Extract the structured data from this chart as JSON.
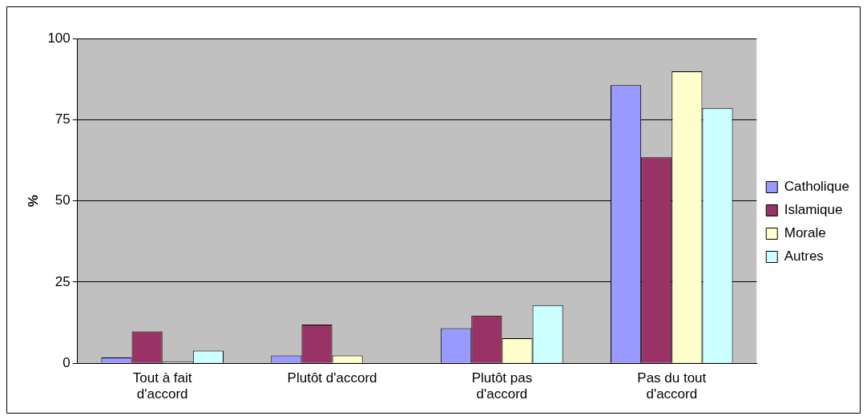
{
  "chart_data": {
    "type": "bar",
    "ylabel": "%",
    "categories": [
      "Tout à fait d'accord",
      "Plutôt d'accord",
      "Plutôt pas d'accord",
      "Pas du tout d'accord"
    ],
    "series": [
      {
        "name": "Catholique",
        "color": "#9999ff",
        "values": [
          1.8,
          2.4,
          10.8,
          85.6
        ]
      },
      {
        "name": "Islamique",
        "color": "#993366",
        "values": [
          9.8,
          11.9,
          14.7,
          63.4
        ]
      },
      {
        "name": "Morale",
        "color": "#ffffcc",
        "values": [
          0.5,
          2.4,
          7.7,
          89.9
        ]
      },
      {
        "name": "Autres",
        "color": "#ccffff",
        "values": [
          3.9,
          0,
          17.9,
          78.6
        ]
      }
    ],
    "ylim": [
      0,
      100
    ],
    "yticks": [
      0,
      25,
      50,
      75,
      100
    ],
    "grid": "y",
    "legend": "right"
  }
}
